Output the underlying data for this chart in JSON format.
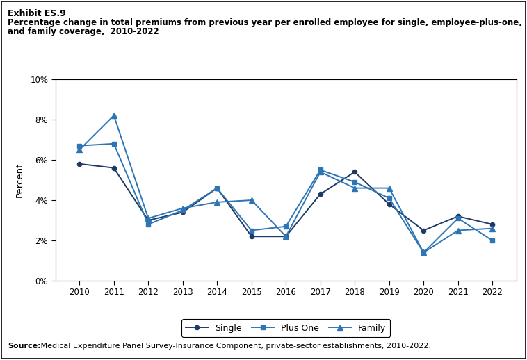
{
  "years": [
    2010,
    2011,
    2012,
    2013,
    2014,
    2015,
    2016,
    2017,
    2018,
    2019,
    2020,
    2021,
    2022
  ],
  "single": [
    5.8,
    5.6,
    3.0,
    3.4,
    4.6,
    2.2,
    2.2,
    4.3,
    5.4,
    3.8,
    2.5,
    3.2,
    2.8
  ],
  "plus_one": [
    6.7,
    6.8,
    2.8,
    3.5,
    4.6,
    2.5,
    2.7,
    5.5,
    4.9,
    4.1,
    1.4,
    3.1,
    2.0
  ],
  "family": [
    6.5,
    8.2,
    3.1,
    3.6,
    3.9,
    4.0,
    2.2,
    5.4,
    4.6,
    4.6,
    1.4,
    2.5,
    2.6
  ],
  "single_color": "#1f3864",
  "plus_one_color": "#2e75b6",
  "family_color": "#2e75b6",
  "ylim": [
    0,
    10
  ],
  "yticks": [
    0,
    2,
    4,
    6,
    8,
    10
  ],
  "ytick_labels": [
    "0%",
    "2%",
    "4%",
    "6%",
    "8%",
    "10%"
  ],
  "ylabel": "Percent",
  "title_line1": "Exhibit ES.9",
  "title_line2": "Percentage change in total premiums from previous year per enrolled employee for single, employee-plus-one,",
  "title_line3": "and family coverage,  2010-2022",
  "source_bold": "Source:",
  "source_rest": " Medical Expenditure Panel Survey-Insurance Component, private-sector establishments, 2010-2022.",
  "legend_labels": [
    "Single",
    "Plus One",
    "Family"
  ],
  "background_color": "#ffffff"
}
